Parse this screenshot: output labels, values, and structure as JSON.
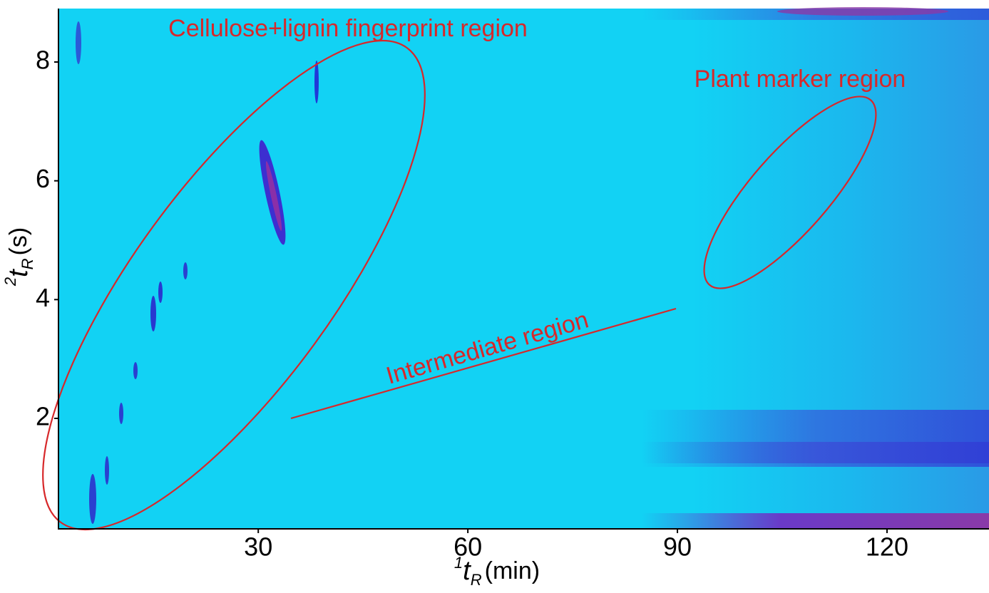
{
  "chart_data": {
    "type": "contour",
    "xlabel": {
      "sup": "1",
      "main": "t",
      "sub": "R",
      "unit": "(min)"
    },
    "ylabel": {
      "sup": "2",
      "main": "t",
      "sub": "R",
      "unit": "(s)"
    },
    "xlim": [
      1.4,
      134.6
    ],
    "ylim": [
      0.14,
      8.9
    ],
    "xticks": [
      30,
      60,
      90,
      120
    ],
    "yticks": [
      2,
      4,
      6,
      8
    ],
    "annotations": [
      "Cellulose+lignin fingerprint region",
      "Plant marker region",
      "Intermediate region"
    ],
    "annotation_color": "#d7282a"
  }
}
